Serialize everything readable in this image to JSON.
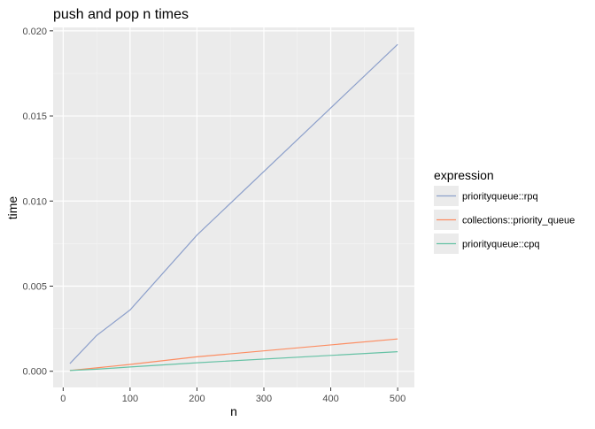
{
  "chart_data": {
    "type": "line",
    "title": "push and pop n times",
    "xlabel": "n",
    "ylabel": "time",
    "x": [
      10,
      50,
      100,
      200,
      500
    ],
    "xlim": [
      -15,
      525
    ],
    "ylim": [
      -0.00095,
      0.0202
    ],
    "xticks": [
      0,
      100,
      200,
      300,
      400,
      500
    ],
    "xtick_labels": [
      "0",
      "100",
      "200",
      "300",
      "400",
      "500"
    ],
    "yticks": [
      0,
      0.005,
      0.01,
      0.015,
      0.02
    ],
    "ytick_labels": [
      "0.000",
      "0.005",
      "0.010",
      "0.015",
      "0.020"
    ],
    "grid": true,
    "legend": {
      "title": "expression",
      "position": "right"
    },
    "series": [
      {
        "name": "priorityqueue::rpq",
        "color": "#8da0cb",
        "values": [
          0.00045,
          0.0021,
          0.0036,
          0.008,
          0.0192
        ]
      },
      {
        "name": "collections::priority_queue",
        "color": "#fc8d62",
        "values": [
          5e-05,
          0.0002,
          0.0004,
          0.00085,
          0.0019
        ]
      },
      {
        "name": "priorityqueue::cpq",
        "color": "#66c2a5",
        "values": [
          4e-05,
          0.00012,
          0.00025,
          0.0005,
          0.00115
        ]
      }
    ]
  }
}
